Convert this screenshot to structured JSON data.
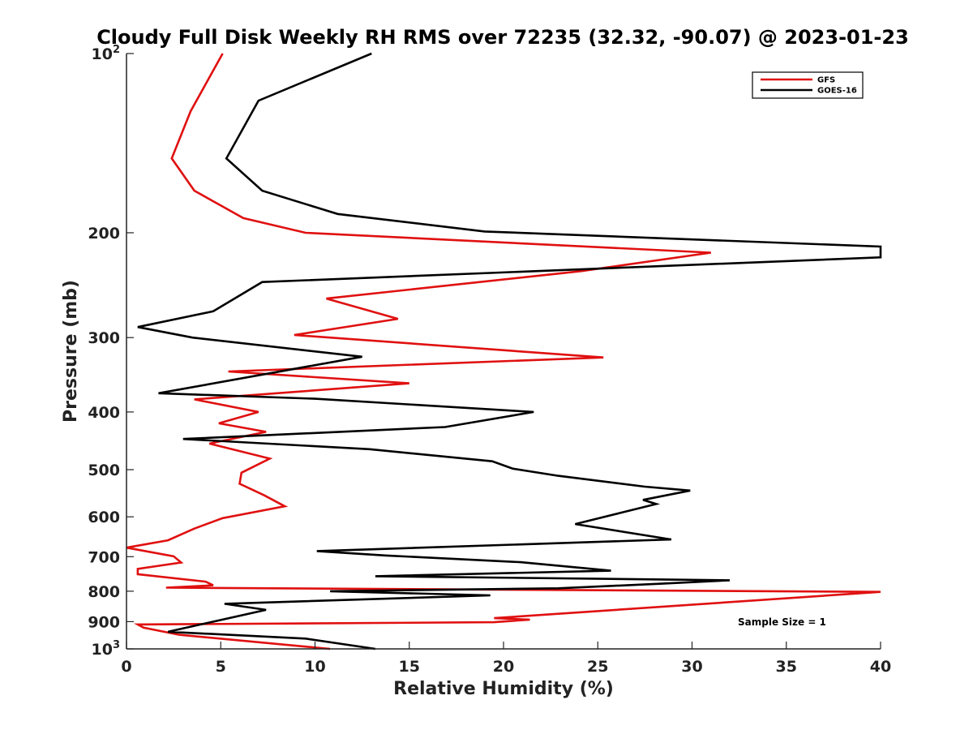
{
  "chart_data": {
    "type": "line",
    "title": "Cloudy Full Disk Weekly RH RMS over 72235 (32.32, -90.07) @ 2023-01-23",
    "xlabel": "Relative Humidity (%)",
    "ylabel": "Pressure (mb)",
    "xlim": [
      0,
      40
    ],
    "ylim": [
      100,
      1000
    ],
    "yscale": "log",
    "y_reversed": true,
    "xticks": [
      0,
      5,
      10,
      15,
      20,
      25,
      30,
      35,
      40
    ],
    "yticks": [
      {
        "value": 100,
        "base": "10",
        "exp": "2"
      },
      {
        "value": 200,
        "label": "200"
      },
      {
        "value": 300,
        "label": "300"
      },
      {
        "value": 400,
        "label": "400"
      },
      {
        "value": 500,
        "label": "500"
      },
      {
        "value": 600,
        "label": "600"
      },
      {
        "value": 700,
        "label": "700"
      },
      {
        "value": 800,
        "label": "800"
      },
      {
        "value": 900,
        "label": "900"
      },
      {
        "value": 1000,
        "base": "10",
        "exp": "3"
      }
    ],
    "legend_position": "top-right",
    "annotation": "Sample Size = 1",
    "series": [
      {
        "name": "GFS",
        "color": "#e01010",
        "x": [
          5.1,
          3.4,
          2.4,
          3.6,
          6.2,
          9.5,
          31.0,
          24.1,
          10.6,
          14.4,
          8.9,
          25.3,
          5.4,
          15.0,
          3.6,
          7.0,
          4.9,
          7.4,
          4.4,
          7.6,
          6.1,
          6.0,
          7.3,
          8.4,
          5.1,
          3.6,
          2.2,
          0.0,
          2.5,
          2.9,
          0.6,
          0.6,
          4.2,
          4.6,
          2.1,
          40.0,
          19.5,
          21.4,
          19.5,
          0.6,
          0.9,
          2.8,
          10.8
        ],
        "y": [
          100,
          125,
          150,
          170,
          189,
          200,
          216,
          232,
          258,
          279,
          297,
          324,
          342,
          358,
          381,
          400,
          418,
          432,
          452,
          479,
          506,
          528,
          552,
          576,
          603,
          628,
          657,
          676,
          699,
          716,
          734,
          749,
          771,
          782,
          789,
          802,
          888,
          893,
          902,
          910,
          921,
          947,
          1000
        ]
      },
      {
        "name": "GOES-16",
        "color": "#000000",
        "x": [
          13.0,
          7.0,
          5.3,
          7.2,
          11.2,
          19.0,
          40.0,
          40.0,
          7.2,
          4.6,
          0.6,
          3.5,
          12.5,
          1.7,
          10.0,
          21.6,
          16.9,
          3.0,
          12.9,
          19.4,
          20.5,
          22.9,
          27.5,
          29.9,
          27.4,
          28.1,
          26.1,
          23.8,
          28.9,
          10.1,
          13.8,
          20.9,
          25.7,
          13.2,
          32.0,
          28.4,
          22.9,
          10.8,
          19.3,
          5.2,
          7.4,
          2.2,
          9.5,
          13.2
        ],
        "y": [
          100,
          120,
          150,
          170,
          186,
          199,
          211,
          220,
          242,
          271,
          288,
          300,
          323,
          372,
          380,
          400,
          424,
          444,
          462,
          484,
          498,
          512,
          534,
          542,
          562,
          571,
          592,
          617,
          655,
          685,
          697,
          715,
          739,
          755,
          767,
          777,
          791,
          800,
          813,
          840,
          860,
          936,
          961,
          1000
        ]
      }
    ]
  }
}
